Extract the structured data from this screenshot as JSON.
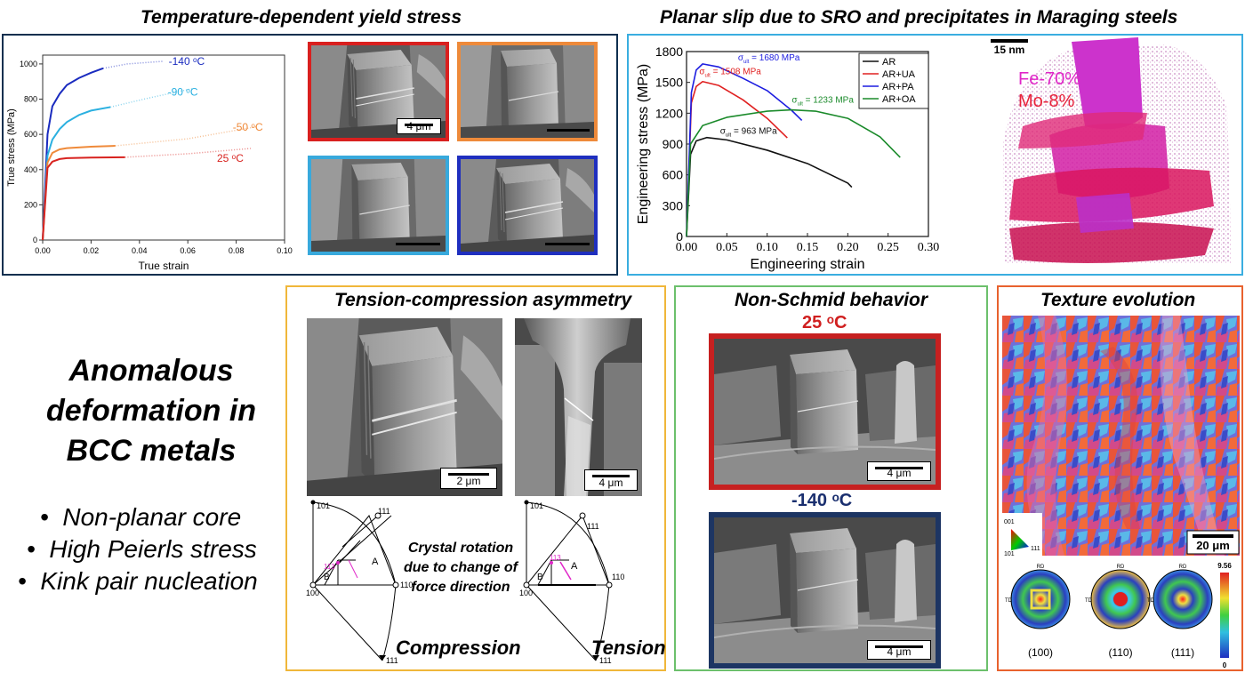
{
  "panels": {
    "yield": {
      "title": "Temperature-dependent yield stress"
    },
    "slip": {
      "title": "Planar slip due to SRO and precipitates in Maraging steels"
    },
    "tc": {
      "title": "Tension-compression asymmetry"
    },
    "schmid": {
      "title": "Non-Schmid behavior"
    },
    "texture": {
      "title": "Texture evolution"
    }
  },
  "main_title": {
    "line1": "Anomalous",
    "line2": "deformation in",
    "line3": "BCC metals"
  },
  "bullets": [
    {
      "sym": "•",
      "text": "Non-planar core"
    },
    {
      "sym": "•",
      "text": "High Peierls stress"
    },
    {
      "sym": "•",
      "text": "Kink pair nucleation"
    }
  ],
  "colors": {
    "red_frame": "#d9201f",
    "orange_frame": "#ee8a3a",
    "light_blue_frame": "#38a9dc",
    "dark_blue_frame": "#1f2fbf",
    "panel_navy": "#0f2f4f",
    "panel_lightblue": "#3aaee0",
    "panel_yellow": "#f0b73a",
    "panel_green": "#6cc06c",
    "panel_orange": "#e8622e"
  },
  "sem_scales": {
    "yield_red": "4 μm",
    "tc_compression": "2 μm",
    "tc_tension": "4 μm",
    "schmid_25": "4 μm",
    "schmid_m140": "4 μm",
    "apt": "15 nm",
    "ebsd": "20 μm"
  },
  "schmid_labels": {
    "t25": "25 ᵒC",
    "tm140": "-140 ᵒC"
  },
  "apt_labels": {
    "fe": "Fe-70%",
    "mo": "Mo-8%"
  },
  "tc_diagram": {
    "rotation_text": [
      "Crystal rotation",
      "due to change of",
      "force direction"
    ],
    "compression": "Compression",
    "tension": "Tension",
    "poles": {
      "p101": "101",
      "p111": "111",
      "p100": "100",
      "p110": "110",
      "p113": "113",
      "pm111": "111",
      "A": "A",
      "B": "B"
    }
  },
  "texture": {
    "ipf_labels": [
      "001",
      "101",
      "111"
    ],
    "pf_labels": [
      "(100)",
      "(110)",
      "(111)"
    ],
    "rd": "RD",
    "td": "TD",
    "cbar_max": "9.56",
    "cbar_min": "0"
  },
  "chart_data": [
    {
      "type": "line",
      "title": "",
      "xlabel": "True strain",
      "ylabel": "True stress (MPa)",
      "xlim": [
        0,
        0.1
      ],
      "ylim": [
        0,
        1050
      ],
      "xticks": [
        "0.00",
        "0.02",
        "0.04",
        "0.06",
        "0.08",
        "0.10"
      ],
      "yticks": [
        "0",
        "200",
        "400",
        "600",
        "800",
        "1000"
      ],
      "legend": "none",
      "series": [
        {
          "name": "-140 ᵒC",
          "color": "#1a2bbf",
          "x": [
            0,
            0.002,
            0.004,
            0.007,
            0.01,
            0.015,
            0.02,
            0.025
          ],
          "y": [
            0,
            600,
            760,
            830,
            880,
            920,
            950,
            975
          ],
          "x_dotted": [
            0.025,
            0.035,
            0.05
          ],
          "y_dotted": [
            975,
            1000,
            1015
          ]
        },
        {
          "name": "-90 ᵒC",
          "color": "#2bb0e0",
          "x": [
            0,
            0.002,
            0.004,
            0.007,
            0.01,
            0.015,
            0.02,
            0.028
          ],
          "y": [
            0,
            480,
            570,
            630,
            670,
            710,
            735,
            755
          ],
          "x_dotted": [
            0.028,
            0.045,
            0.062
          ],
          "y_dotted": [
            755,
            810,
            860
          ]
        },
        {
          "name": "-50 ᵒC",
          "color": "#ef8a3a",
          "x": [
            0,
            0.002,
            0.004,
            0.007,
            0.01,
            0.02,
            0.03
          ],
          "y": [
            0,
            440,
            495,
            515,
            522,
            530,
            535
          ],
          "x_dotted": [
            0.03,
            0.06,
            0.089
          ],
          "y_dotted": [
            535,
            575,
            645
          ]
        },
        {
          "name": "25 ᵒC",
          "color": "#d8231f",
          "x": [
            0,
            0.002,
            0.004,
            0.007,
            0.01,
            0.02,
            0.034
          ],
          "y": [
            0,
            410,
            445,
            460,
            465,
            468,
            470
          ],
          "x_dotted": [
            0.034,
            0.06,
            0.086
          ],
          "y_dotted": [
            470,
            490,
            520
          ]
        }
      ]
    },
    {
      "type": "line",
      "title": "",
      "xlabel": "Engineering strain",
      "ylabel": "Engineering stress (MPa)",
      "xlim": [
        0,
        0.3
      ],
      "ylim": [
        0,
        1800
      ],
      "xticks": [
        "0.00",
        "0.05",
        "0.10",
        "0.15",
        "0.20",
        "0.25",
        "0.30"
      ],
      "yticks": [
        "0",
        "300",
        "600",
        "900",
        "1200",
        "1500",
        "1800"
      ],
      "legend": "top-right",
      "series": [
        {
          "name": "AR",
          "color": "#111111",
          "x": [
            0,
            0.005,
            0.012,
            0.025,
            0.05,
            0.1,
            0.15,
            0.2,
            0.205
          ],
          "y": [
            0,
            800,
            930,
            963,
            940,
            840,
            710,
            520,
            480
          ]
        },
        {
          "name": "AR+UA",
          "color": "#e02020",
          "x": [
            0,
            0.006,
            0.012,
            0.02,
            0.04,
            0.07,
            0.1,
            0.125
          ],
          "y": [
            0,
            1300,
            1460,
            1508,
            1470,
            1330,
            1150,
            960
          ]
        },
        {
          "name": "AR+PA",
          "color": "#1d1de0",
          "x": [
            0,
            0.006,
            0.012,
            0.02,
            0.04,
            0.07,
            0.1,
            0.13,
            0.143
          ],
          "y": [
            0,
            1400,
            1620,
            1680,
            1650,
            1540,
            1420,
            1230,
            1130
          ]
        },
        {
          "name": "AR+OA",
          "color": "#1a8a2a",
          "x": [
            0,
            0.005,
            0.02,
            0.05,
            0.1,
            0.13,
            0.16,
            0.2,
            0.24,
            0.265
          ],
          "y": [
            0,
            900,
            1080,
            1160,
            1220,
            1233,
            1220,
            1150,
            970,
            770
          ]
        }
      ],
      "annotations": [
        {
          "prefix": "σ",
          "sub": "ult",
          "text": "= 1680 MPa",
          "color": "#1d1de0"
        },
        {
          "prefix": "σ",
          "sub": "ult",
          "text": "= 1508 MPa",
          "color": "#e02020"
        },
        {
          "prefix": "σ",
          "sub": "ult",
          "text": "= 1233 MPa",
          "color": "#1a8a2a"
        },
        {
          "prefix": "σ",
          "sub": "ult",
          "text": "= 963 MPa",
          "color": "#111111"
        }
      ]
    }
  ]
}
